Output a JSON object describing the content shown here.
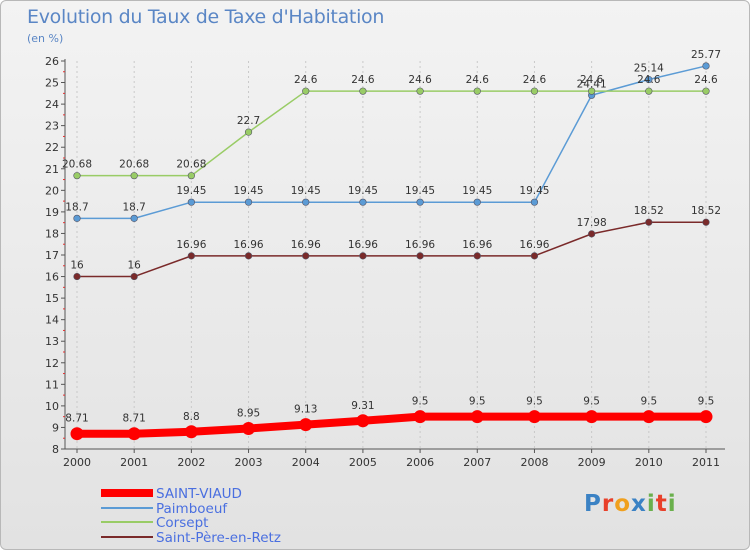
{
  "header": {
    "title": "Evolution du Taux de Taxe d'Habitation",
    "unit": "(en %)"
  },
  "logo": {
    "text": "Proxiti",
    "letters": [
      "P",
      "r",
      "o",
      "x",
      "i",
      "t",
      "i"
    ],
    "colors": [
      "#3b82c4",
      "#e8402a",
      "#f0a01e",
      "#3b82c4",
      "#6ab04c",
      "#e8402a",
      "#6ab04c"
    ]
  },
  "chart_data": {
    "type": "line",
    "title": "Evolution du Taux de Taxe d'Habitation",
    "ylabel": "(en %)",
    "xlabel": "",
    "x": [
      "2000",
      "2001",
      "2002",
      "2003",
      "2004",
      "2005",
      "2006",
      "2007",
      "2008",
      "2009",
      "2010",
      "2011"
    ],
    "ylim": [
      8,
      26
    ],
    "yticks": [
      "8",
      "9",
      "10",
      "11",
      "12",
      "13",
      "14",
      "15",
      "16",
      "17",
      "18",
      "19",
      "20",
      "21",
      "22",
      "23",
      "24",
      "25",
      "26"
    ],
    "grid": "vertical-dashed",
    "legend": "bottom-left",
    "series": [
      {
        "name": "SAINT-VIAUD",
        "color": "#ff0000",
        "values": [
          8.71,
          8.71,
          8.8,
          8.95,
          9.13,
          9.31,
          9.5,
          9.5,
          9.5,
          9.5,
          9.5,
          9.5
        ],
        "labels": [
          "8.71",
          "8.71",
          "8.8",
          "8.95",
          "9.13",
          "9.31",
          "9.5",
          "9.5",
          "9.5",
          "9.5",
          "9.5",
          "9.5"
        ]
      },
      {
        "name": "Paimboeuf",
        "color": "#5b9bd5",
        "values": [
          18.7,
          18.7,
          19.45,
          19.45,
          19.45,
          19.45,
          19.45,
          19.45,
          19.45,
          24.41,
          25.14,
          25.77
        ],
        "labels": [
          "18.7",
          "18.7",
          "19.45",
          "19.45",
          "19.45",
          "19.45",
          "19.45",
          "19.45",
          "19.45",
          "24.41",
          "25.14",
          "25.77"
        ]
      },
      {
        "name": "Corsept",
        "color": "#99cc66",
        "values": [
          20.68,
          20.68,
          20.68,
          22.7,
          24.6,
          24.6,
          24.6,
          24.6,
          24.6,
          24.6,
          24.6,
          24.6
        ],
        "labels": [
          "20.68",
          "20.68",
          "20.68",
          "22.7",
          "24.6",
          "24.6",
          "24.6",
          "24.6",
          "24.6",
          "24.6",
          "24.6",
          "24.6"
        ]
      },
      {
        "name": "Saint-Père-en-Retz",
        "color": "#7a2a2a",
        "values": [
          16,
          16,
          16.96,
          16.96,
          16.96,
          16.96,
          16.96,
          16.96,
          16.96,
          17.98,
          18.52,
          18.52
        ],
        "labels": [
          "16",
          "16",
          "16.96",
          "16.96",
          "16.96",
          "16.96",
          "16.96",
          "16.96",
          "16.96",
          "17.98",
          "18.52",
          "18.52"
        ]
      }
    ]
  }
}
